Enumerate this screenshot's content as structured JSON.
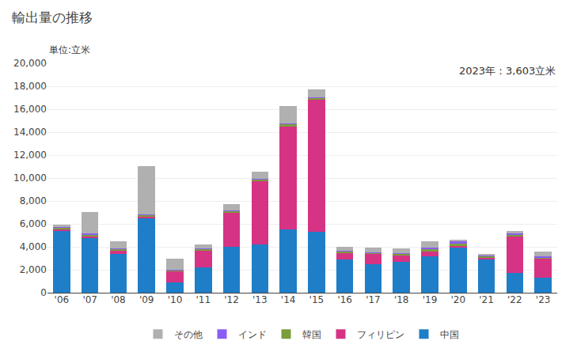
{
  "chart_data": {
    "type": "bar",
    "title": "輸出量の推移",
    "subtitle": "単位:立米",
    "annotation": "2023年：3,603立米",
    "categories": [
      "'06",
      "'07",
      "'08",
      "'09",
      "'10",
      "'11",
      "'12",
      "'13",
      "'14",
      "'15",
      "'16",
      "'17",
      "'18",
      "'19",
      "'20",
      "'21",
      "'22",
      "'23"
    ],
    "series": [
      {
        "name": "中国",
        "color": "#1e7ec8",
        "values": [
          5400,
          4800,
          3400,
          6500,
          900,
          2200,
          4000,
          4200,
          5500,
          5300,
          2900,
          2500,
          2700,
          3200,
          3900,
          2900,
          1700,
          1300
        ]
      },
      {
        "name": "フィリピン",
        "color": "#d63384",
        "values": [
          100,
          100,
          300,
          100,
          1000,
          1500,
          3000,
          5500,
          9000,
          11500,
          600,
          900,
          600,
          400,
          200,
          200,
          3200,
          1700
        ]
      },
      {
        "name": "韓国",
        "color": "#7a9e3b",
        "values": [
          200,
          200,
          100,
          200,
          50,
          100,
          150,
          200,
          200,
          200,
          100,
          100,
          100,
          200,
          200,
          100,
          150,
          100
        ]
      },
      {
        "name": "インド",
        "color": "#8b5cf6",
        "values": [
          50,
          50,
          50,
          50,
          30,
          50,
          50,
          50,
          50,
          50,
          50,
          50,
          50,
          100,
          150,
          100,
          100,
          100
        ]
      },
      {
        "name": "その他",
        "color": "#b0b0b0",
        "values": [
          200,
          1900,
          600,
          4200,
          1000,
          350,
          550,
          600,
          1500,
          700,
          350,
          400,
          400,
          600,
          200,
          100,
          200,
          400
        ]
      }
    ],
    "stacked": true,
    "ylim": [
      0,
      20000
    ],
    "yticks": [
      0,
      {
        "value": 2000,
        "label": "2,000"
      },
      {
        "value": 4000,
        "label": "4,000"
      },
      {
        "value": 6000,
        "label": "6,000"
      },
      {
        "value": 8000,
        "label": "8,000"
      },
      {
        "value": 10000,
        "label": "10,000"
      },
      {
        "value": 12000,
        "label": "12,000"
      },
      {
        "value": 14000,
        "label": "14,000"
      },
      {
        "value": 16000,
        "label": "16,000"
      },
      {
        "value": 18000,
        "label": "18,000"
      },
      {
        "value": 20000,
        "label": "20,000"
      }
    ],
    "grid": true,
    "legend": "bottom"
  }
}
